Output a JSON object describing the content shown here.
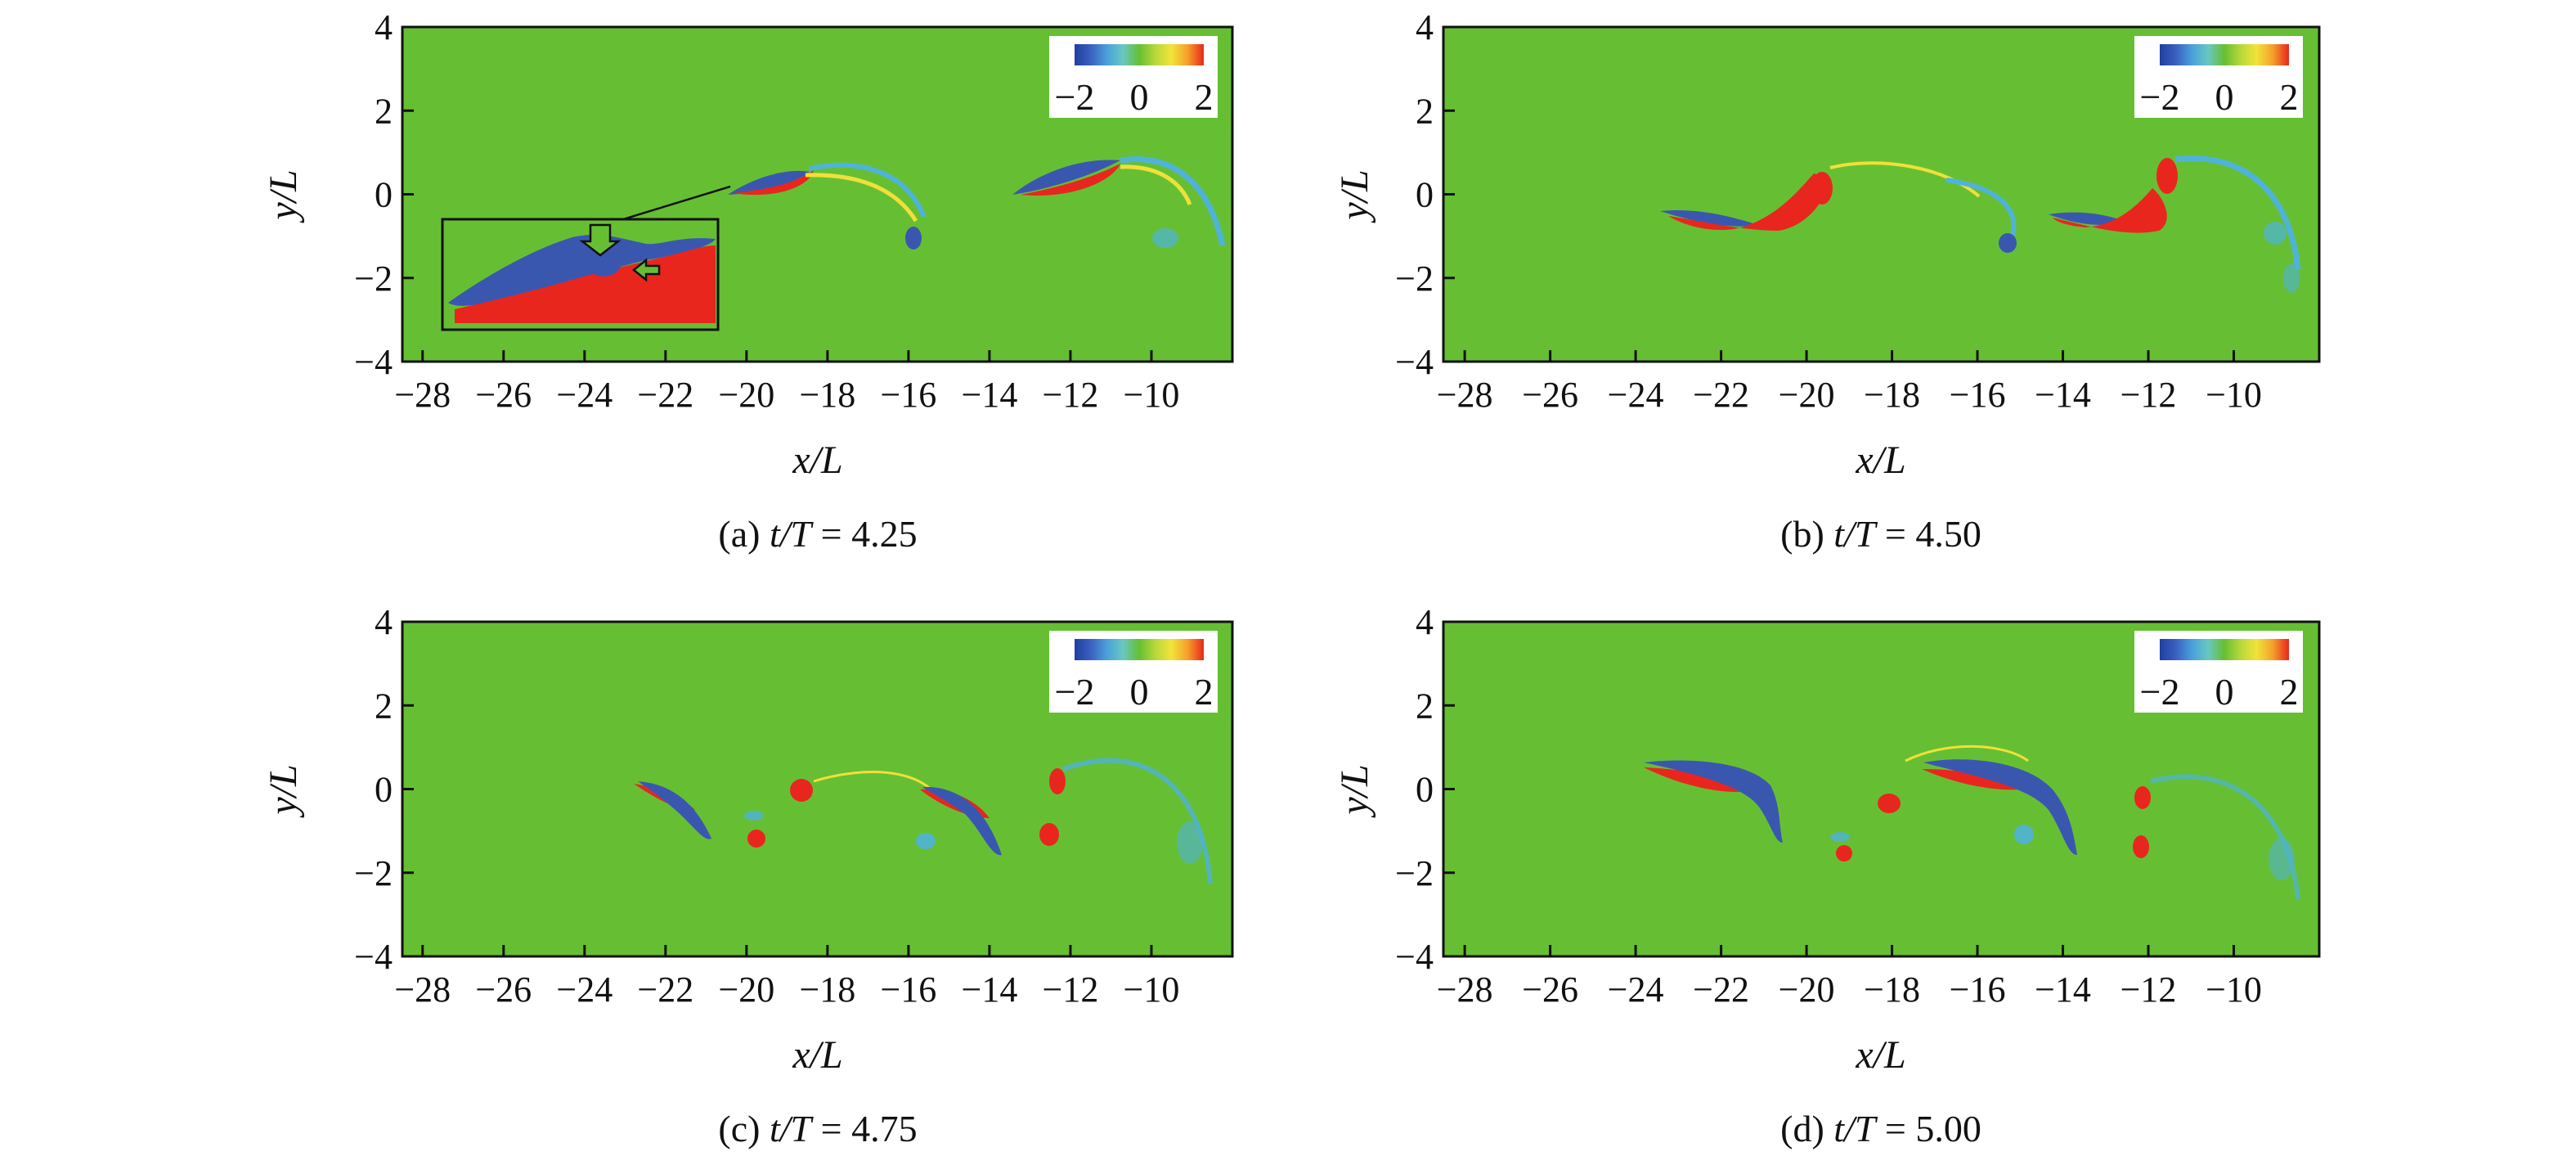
{
  "chart_data": [
    {
      "type": "heatmap",
      "panel": "a",
      "caption": {
        "prefix": "(a) ",
        "italic": "t/T",
        "suffix": " = 4.25"
      },
      "xlabel": {
        "italic": "x/L"
      },
      "ylabel": {
        "italic": "y/L"
      },
      "xlim": [
        -28,
        -8
      ],
      "ylim": [
        -4,
        4
      ],
      "xticks": [
        "−28",
        "−26",
        "−24",
        "−22",
        "−20",
        "−18",
        "−16",
        "−14",
        "−12",
        "−10"
      ],
      "yticks": [
        "4",
        "2",
        "0",
        "−2",
        "−4"
      ],
      "colorbar": {
        "ticks": [
          "−2",
          "0",
          "2"
        ],
        "range": [
          -2,
          2
        ]
      },
      "has_inset": true
    },
    {
      "type": "heatmap",
      "panel": "b",
      "caption": {
        "prefix": "(b) ",
        "italic": "t/T",
        "suffix": " = 4.50"
      },
      "xlabel": {
        "italic": "x/L"
      },
      "ylabel": {
        "italic": "y/L"
      },
      "xlim": [
        -28,
        -8
      ],
      "ylim": [
        -4,
        4
      ],
      "xticks": [
        "−28",
        "−26",
        "−24",
        "−22",
        "−20",
        "−18",
        "−16",
        "−14",
        "−12",
        "−10"
      ],
      "yticks": [
        "4",
        "2",
        "0",
        "−2",
        "−4"
      ],
      "colorbar": {
        "ticks": [
          "−2",
          "0",
          "2"
        ],
        "range": [
          -2,
          2
        ]
      },
      "has_inset": false
    },
    {
      "type": "heatmap",
      "panel": "c",
      "caption": {
        "prefix": "(c) ",
        "italic": "t/T",
        "suffix": " = 4.75"
      },
      "xlabel": {
        "italic": "x/L"
      },
      "ylabel": {
        "italic": "y/L"
      },
      "xlim": [
        -28,
        -8
      ],
      "ylim": [
        -4,
        4
      ],
      "xticks": [
        "−28",
        "−26",
        "−24",
        "−22",
        "−20",
        "−18",
        "−16",
        "−14",
        "−12",
        "−10"
      ],
      "yticks": [
        "4",
        "2",
        "0",
        "−2",
        "−4"
      ],
      "colorbar": {
        "ticks": [
          "−2",
          "0",
          "2"
        ],
        "range": [
          -2,
          2
        ]
      },
      "has_inset": false
    },
    {
      "type": "heatmap",
      "panel": "d",
      "caption": {
        "prefix": "(d) ",
        "italic": "t/T",
        "suffix": " = 5.00"
      },
      "xlabel": {
        "italic": "x/L"
      },
      "ylabel": {
        "italic": "y/L"
      },
      "xlim": [
        -28,
        -8
      ],
      "ylim": [
        -4,
        4
      ],
      "xticks": [
        "−28",
        "−26",
        "−24",
        "−22",
        "−20",
        "−18",
        "−16",
        "−14",
        "−12",
        "−10"
      ],
      "yticks": [
        "4",
        "2",
        "0",
        "−2",
        "−4"
      ],
      "colorbar": {
        "ticks": [
          "−2",
          "0",
          "2"
        ],
        "range": [
          -2,
          2
        ]
      },
      "has_inset": false
    }
  ],
  "colors": {
    "field": "#66bf33",
    "positive": "#e8261e",
    "negative": "#3a57b0",
    "weak_negative": "#4fb3d9",
    "weak_positive": "#f0e03a",
    "colormap": [
      "#1f3fa0",
      "#3a60c0",
      "#4aa0dc",
      "#68c8c0",
      "#66bf33",
      "#b8d83a",
      "#f2e33a",
      "#f5a02a",
      "#e8261e"
    ]
  }
}
